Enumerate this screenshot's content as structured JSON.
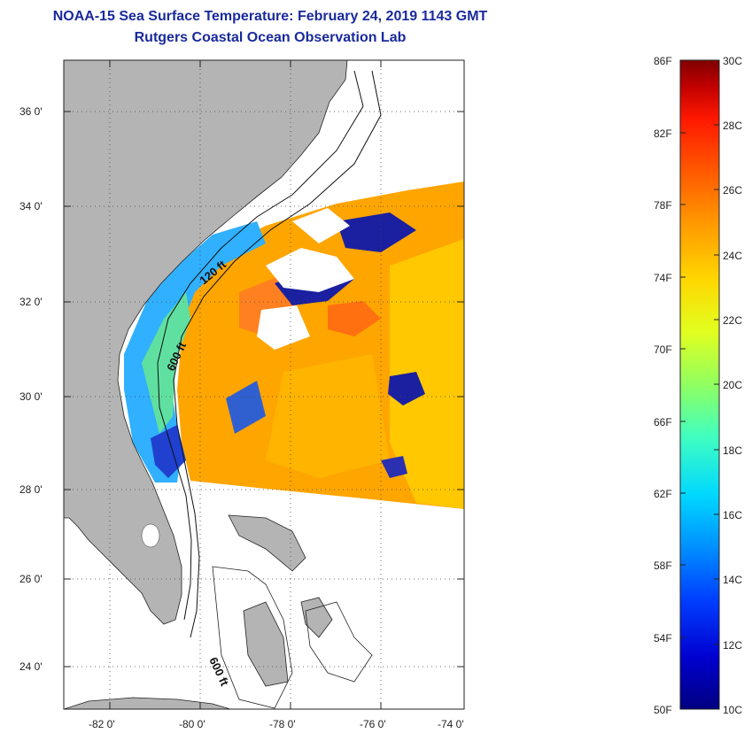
{
  "header": {
    "title_line_1": "NOAA-15 Sea Surface Temperature:  February 24, 2019 1143 GMT",
    "title_line_2": "Rutgers Coastal Ocean Observation Lab"
  },
  "map": {
    "lat_labels": [
      "36 0'",
      "34 0'",
      "32 0'",
      "30 0'",
      "28 0'",
      "26 0'",
      "24 0'"
    ],
    "lon_labels": [
      "-82 0'",
      "-80 0'",
      "-78 0'",
      "-76 0'",
      "-74 0'"
    ],
    "contour_labels": [
      "120 ft",
      "600 ft",
      "600 ft"
    ],
    "land_color": "#b4b4b4",
    "no_data_color": "#ffffff"
  },
  "colorbar": {
    "fahrenheit_labels": [
      "86F",
      "82F",
      "78F",
      "74F",
      "70F",
      "66F",
      "62F",
      "58F",
      "54F",
      "50F"
    ],
    "celsius_labels": [
      "30C",
      "28C",
      "26C",
      "24C",
      "22C",
      "20C",
      "18C",
      "16C",
      "14C",
      "12C",
      "10C"
    ],
    "colors": [
      "#000080",
      "#0000d0",
      "#0040ff",
      "#0090ff",
      "#00d8ff",
      "#40ffc0",
      "#90ff60",
      "#e0ff20",
      "#ffd800",
      "#ff9800",
      "#ff5800",
      "#ff1800",
      "#c00000",
      "#800000"
    ]
  }
}
